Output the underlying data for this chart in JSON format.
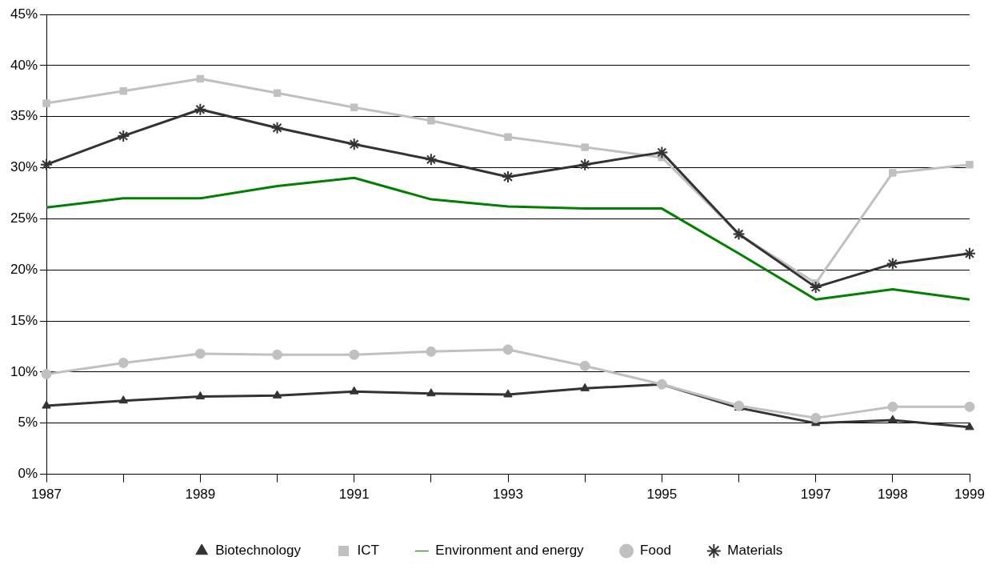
{
  "chart_data": {
    "type": "line",
    "categories": [
      "1987",
      null,
      "1989",
      null,
      "1991",
      null,
      "1993",
      null,
      "1995",
      null,
      "1997",
      "1998",
      "1999"
    ],
    "series": [
      {
        "name": "Biotechnology",
        "color": "#333333",
        "marker": "triangle",
        "values": [
          6.7,
          7.2,
          7.6,
          7.7,
          8.1,
          7.9,
          7.8,
          8.4,
          8.8,
          6.5,
          5.0,
          5.3,
          4.6
        ]
      },
      {
        "name": "ICT",
        "color": "#c0c0c0",
        "marker": "square",
        "values": [
          36.3,
          37.5,
          38.7,
          37.3,
          35.9,
          34.6,
          33.0,
          32.0,
          31.0,
          23.5,
          18.7,
          29.5,
          30.3
        ]
      },
      {
        "name": "Environment and energy",
        "color": "#008000",
        "marker": "none",
        "values": [
          26.1,
          27.0,
          27.0,
          28.2,
          29.0,
          26.9,
          26.2,
          26.0,
          26.0,
          21.6,
          17.1,
          18.1,
          17.1
        ]
      },
      {
        "name": "Food",
        "color": "#c0c0c0",
        "marker": "circle",
        "values": [
          9.8,
          10.9,
          11.8,
          11.7,
          11.7,
          12.0,
          12.2,
          10.6,
          8.8,
          6.7,
          5.5,
          6.6,
          6.6
        ]
      },
      {
        "name": "Materials",
        "color": "#333333",
        "marker": "cross",
        "values": [
          30.3,
          33.1,
          35.7,
          33.9,
          32.3,
          30.8,
          29.1,
          30.3,
          31.5,
          23.5,
          18.3,
          20.6,
          21.6
        ]
      }
    ],
    "ylim": [
      0,
      45
    ],
    "yticks": [
      {
        "value": 0,
        "label": "0%"
      },
      {
        "value": 5,
        "label": "5%"
      },
      {
        "value": 10,
        "label": "10%"
      },
      {
        "value": 15,
        "label": "15%"
      },
      {
        "value": 20,
        "label": "20%"
      },
      {
        "value": 25,
        "label": "25%"
      },
      {
        "value": 30,
        "label": "30%"
      },
      {
        "value": 35,
        "label": "35%"
      },
      {
        "value": 40,
        "label": "40%"
      },
      {
        "value": 45,
        "label": "45%"
      }
    ],
    "grid": "y",
    "legend": "bottom",
    "line_style": "solid"
  }
}
